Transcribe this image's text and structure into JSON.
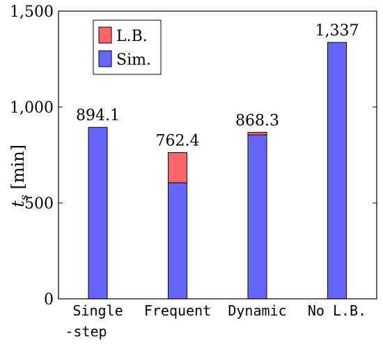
{
  "chart_data": {
    "type": "bar",
    "stacked": true,
    "categories": [
      "Single\n-step",
      "Frequent",
      "Dynamic",
      "No L.B."
    ],
    "series": [
      {
        "name": "Sim.",
        "color": "#6666ff",
        "values": [
          894.1,
          605,
          855,
          1337
        ]
      },
      {
        "name": "L.B.",
        "color": "#ff6666",
        "values": [
          0,
          157.4,
          13.3,
          0
        ]
      }
    ],
    "totals": [
      894.1,
      762.4,
      868.3,
      1337
    ],
    "data_labels": [
      "894.1",
      "762.4",
      "868.3",
      "1,337"
    ],
    "ylabel": "t_s [min]",
    "ylim": [
      0,
      1500
    ],
    "yticks": [
      0,
      500,
      1000,
      1500
    ],
    "ytick_labels": [
      "0",
      "500",
      "1,000",
      "1,500"
    ],
    "grid": false,
    "legend": {
      "placement": "top-left",
      "order": [
        "L.B.",
        "Sim."
      ]
    }
  }
}
